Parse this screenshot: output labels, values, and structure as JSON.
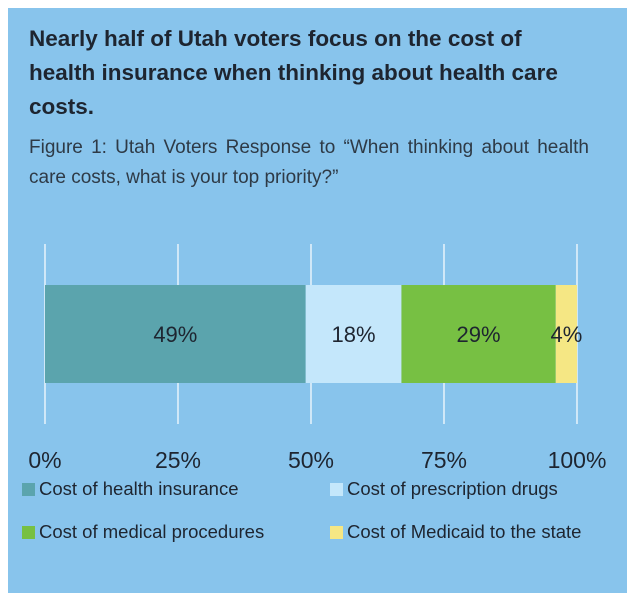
{
  "chart_data": {
    "type": "bar",
    "orientation": "horizontal-stacked",
    "title": "Nearly half of Utah voters focus on the cost of health insurance when thinking about health care costs.",
    "subtitle": "Figure 1: Utah Voters Response to “When thinking about health care costs, what is your top priority?”",
    "xlim": [
      0,
      100
    ],
    "x_ticks": [
      0,
      25,
      50,
      75,
      100
    ],
    "x_tick_labels": [
      "0%",
      "25%",
      "50%",
      "75%",
      "100%"
    ],
    "grid": true,
    "legend_position": "bottom",
    "series": [
      {
        "name": "Cost of health insurance",
        "value": 49,
        "label": "49%",
        "color": "#5ba4ad"
      },
      {
        "name": "Cost of prescription drugs",
        "value": 18,
        "label": "18%",
        "color": "#c4e7fb"
      },
      {
        "name": "Cost of medical procedures",
        "value": 29,
        "label": "29%",
        "color": "#77c043"
      },
      {
        "name": "Cost of Medicaid to the state",
        "value": 4,
        "label": "4%",
        "color": "#f5e784"
      }
    ]
  },
  "colors": {
    "background": "#88c4ec",
    "text": "#1e2530",
    "gridline": "#ffffff"
  }
}
